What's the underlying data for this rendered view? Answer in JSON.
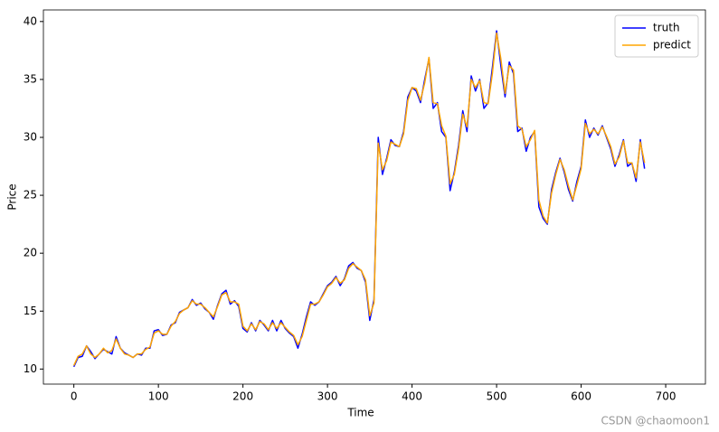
{
  "chart_data": {
    "type": "line",
    "x_label": "Time",
    "y_label": "Price",
    "x": [
      0,
      5,
      10,
      15,
      20,
      25,
      30,
      35,
      40,
      45,
      50,
      55,
      60,
      65,
      70,
      75,
      80,
      85,
      90,
      95,
      100,
      105,
      110,
      115,
      120,
      125,
      130,
      135,
      140,
      145,
      150,
      155,
      160,
      165,
      170,
      175,
      180,
      185,
      190,
      195,
      200,
      205,
      210,
      215,
      220,
      225,
      230,
      235,
      240,
      245,
      250,
      255,
      260,
      265,
      270,
      275,
      280,
      285,
      290,
      295,
      300,
      305,
      310,
      315,
      320,
      325,
      330,
      335,
      340,
      345,
      350,
      355,
      360,
      365,
      370,
      375,
      380,
      385,
      390,
      395,
      400,
      405,
      410,
      415,
      420,
      425,
      430,
      435,
      440,
      445,
      450,
      455,
      460,
      465,
      470,
      475,
      480,
      485,
      490,
      495,
      500,
      505,
      510,
      515,
      520,
      525,
      530,
      535,
      540,
      545,
      550,
      555,
      560,
      565,
      570,
      575,
      580,
      585,
      590,
      595,
      600,
      605,
      610,
      615,
      620,
      625,
      630,
      635,
      640,
      645,
      650,
      655,
      660,
      665,
      670,
      675
    ],
    "series": [
      {
        "name": "truth",
        "color": "#0000ff",
        "values": [
          10.2,
          11.0,
          11.1,
          12.0,
          11.5,
          10.9,
          11.3,
          11.7,
          11.5,
          11.3,
          12.8,
          11.8,
          11.4,
          11.2,
          11.0,
          11.3,
          11.2,
          11.8,
          11.8,
          13.3,
          13.4,
          12.9,
          13.0,
          13.8,
          14.0,
          14.9,
          15.1,
          15.3,
          16.0,
          15.5,
          15.7,
          15.2,
          14.9,
          14.3,
          15.5,
          16.5,
          16.8,
          15.6,
          15.9,
          15.4,
          13.5,
          13.2,
          14.0,
          13.3,
          14.2,
          13.8,
          13.3,
          14.2,
          13.3,
          14.2,
          13.5,
          13.1,
          12.8,
          11.8,
          13.0,
          14.5,
          15.8,
          15.5,
          15.8,
          16.5,
          17.2,
          17.5,
          18.0,
          17.2,
          17.8,
          18.9,
          19.2,
          18.7,
          18.5,
          17.5,
          14.2,
          16.0,
          30.0,
          26.8,
          28.2,
          29.8,
          29.3,
          29.2,
          30.5,
          33.5,
          34.3,
          34.0,
          33.0,
          35.0,
          36.8,
          32.5,
          33.0,
          30.5,
          30.0,
          25.4,
          27.0,
          29.3,
          32.3,
          30.5,
          35.3,
          34.0,
          35.0,
          32.5,
          33.0,
          36.0,
          39.2,
          36.2,
          33.5,
          36.5,
          35.5,
          30.5,
          30.8,
          28.8,
          30.0,
          30.5,
          24.0,
          23.0,
          22.5,
          25.5,
          27.0,
          28.2,
          27.0,
          25.5,
          24.5,
          26.2,
          27.5,
          31.5,
          30.0,
          30.8,
          30.2,
          31.0,
          30.0,
          29.0,
          27.5,
          28.5,
          29.8,
          27.5,
          27.8,
          26.2,
          29.8,
          27.3
        ]
      },
      {
        "name": "predict",
        "color": "#ffa500",
        "values": [
          10.3,
          11.1,
          11.3,
          12.0,
          11.3,
          11.0,
          11.3,
          11.8,
          11.4,
          11.6,
          12.6,
          11.8,
          11.3,
          11.2,
          11.0,
          11.3,
          11.3,
          11.7,
          11.9,
          13.1,
          13.3,
          13.0,
          13.0,
          13.7,
          14.1,
          14.8,
          15.1,
          15.3,
          15.9,
          15.6,
          15.6,
          15.3,
          14.9,
          14.5,
          15.4,
          16.4,
          16.6,
          15.8,
          15.8,
          15.6,
          13.7,
          13.3,
          13.9,
          13.4,
          14.1,
          13.9,
          13.4,
          14.0,
          13.5,
          14.0,
          13.6,
          13.2,
          12.9,
          12.1,
          12.8,
          14.2,
          15.6,
          15.6,
          15.8,
          16.4,
          17.1,
          17.4,
          17.9,
          17.4,
          17.7,
          18.7,
          19.1,
          18.8,
          18.5,
          17.7,
          14.6,
          15.7,
          29.5,
          27.2,
          28.0,
          29.6,
          29.4,
          29.2,
          30.3,
          33.2,
          34.3,
          34.2,
          33.2,
          34.7,
          36.9,
          33.0,
          32.9,
          31.0,
          30.1,
          26.0,
          26.8,
          29.0,
          32.0,
          30.9,
          35.0,
          34.3,
          34.9,
          33.0,
          32.9,
          35.5,
          39.0,
          36.8,
          33.8,
          36.2,
          35.8,
          31.0,
          30.7,
          29.2,
          29.8,
          30.6,
          24.6,
          23.2,
          22.6,
          25.2,
          26.8,
          28.1,
          27.2,
          25.8,
          24.6,
          25.9,
          27.3,
          31.2,
          30.3,
          30.7,
          30.3,
          30.9,
          30.1,
          29.2,
          27.7,
          28.3,
          29.7,
          27.8,
          27.8,
          26.5,
          29.6,
          27.8
        ]
      }
    ],
    "xlim": [
      -36,
      747
    ],
    "xticks": [
      0,
      100,
      200,
      300,
      400,
      500,
      600,
      700
    ],
    "ylim": [
      8.7,
      41.0
    ],
    "yticks": [
      10,
      15,
      20,
      25,
      30,
      35,
      40
    ],
    "legend": "upper right",
    "grid": false
  },
  "watermark": "CSDN @chaomoon1"
}
